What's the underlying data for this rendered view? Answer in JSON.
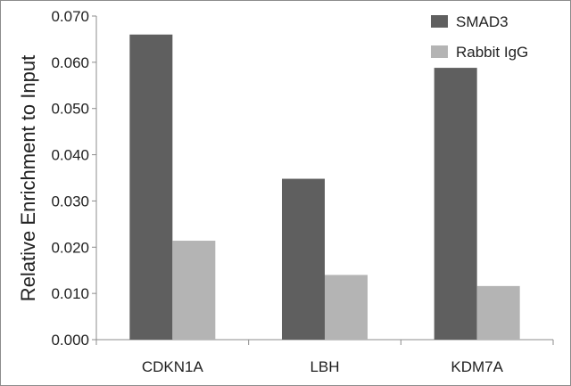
{
  "chart_data": {
    "type": "bar",
    "categories": [
      "CDKN1A",
      "LBH",
      "KDM7A"
    ],
    "series": [
      {
        "name": "SMAD3",
        "values": [
          0.066,
          0.0348,
          0.0588
        ],
        "color": "#5f5f5f"
      },
      {
        "name": "Rabbit IgG",
        "values": [
          0.0214,
          0.014,
          0.0116
        ],
        "color": "#b4b4b4"
      }
    ],
    "yticks": [
      "0.000",
      "0.010",
      "0.020",
      "0.030",
      "0.040",
      "0.050",
      "0.060",
      "0.070"
    ],
    "ylim": [
      0,
      0.07
    ],
    "ylabel": "Relative Enrichment to Input",
    "xlabel": "",
    "title": "",
    "grid": false,
    "legend_position": "top-right"
  }
}
